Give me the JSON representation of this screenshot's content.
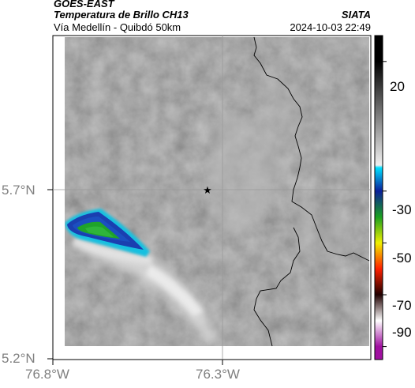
{
  "header": {
    "satellite": "GOES-EAST",
    "product": "Temperatura de Brillo CH13",
    "organization": "SIATA",
    "region": "Vía Medellín - Quibdó 50km",
    "timestamp": "2024-10-03 22:49"
  },
  "map": {
    "lat_ticks": [
      "5.7°N",
      "5.2°N"
    ],
    "lon_ticks": [
      "76.8°W",
      "76.3°W"
    ],
    "marker": "star-icon",
    "colors": {
      "background_gray": "#7a7a7a",
      "cloud_light": "#e8e8e8",
      "cold_core": "#1fa32a",
      "cold_edge": "#1a3fb0",
      "cyan_rim": "#14c0e0"
    }
  },
  "colorbar": {
    "labels": [
      "20",
      "-30",
      "-50",
      "-70",
      "-90"
    ],
    "stops": [
      {
        "t": 20,
        "color": "#000000"
      },
      {
        "t": -20,
        "color": "#f0f0f0"
      },
      {
        "t": -21,
        "color": "#00e0ff"
      },
      {
        "t": -30,
        "color": "#0a1f9a"
      },
      {
        "t": -40,
        "color": "#1aa020"
      },
      {
        "t": -50,
        "color": "#f0f000"
      },
      {
        "t": -60,
        "color": "#ff2000"
      },
      {
        "t": -70,
        "color": "#200000"
      },
      {
        "t": -80,
        "color": "#ffffff"
      },
      {
        "t": -90,
        "color": "#a010a0"
      }
    ]
  }
}
